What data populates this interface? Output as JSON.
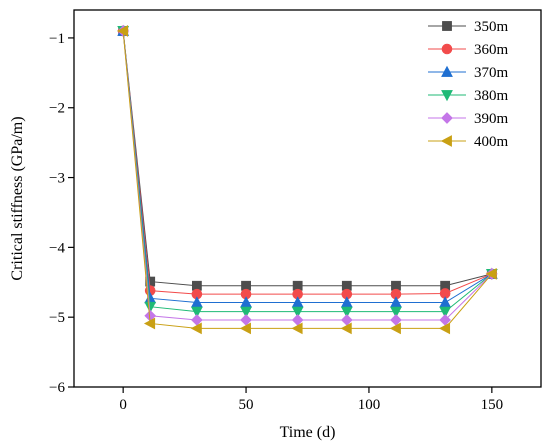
{
  "chart_data": {
    "type": "line",
    "xlabel": "Time (d)",
    "ylabel": "Critical stiffness (GPa/m)",
    "xlim": [
      -20,
      170
    ],
    "ylim": [
      -6,
      -0.6
    ],
    "xticks": [
      0,
      50,
      100,
      150
    ],
    "yticks": [
      -6,
      -5,
      -4,
      -3,
      -2,
      -1
    ],
    "ytick_labels": [
      "−6",
      "−5",
      "−4",
      "−3",
      "−2",
      "−1"
    ],
    "legend_position": "top-right",
    "x": [
      0,
      11,
      30,
      50,
      71,
      91,
      111,
      131,
      150
    ],
    "series": [
      {
        "name": "350m",
        "marker": "square",
        "color": "#4d4d4d",
        "values": [
          -0.9,
          -4.49,
          -4.55,
          -4.55,
          -4.55,
          -4.55,
          -4.55,
          -4.55,
          -4.38
        ]
      },
      {
        "name": "360m",
        "marker": "circle",
        "color": "#f24b4b",
        "values": [
          -0.9,
          -4.62,
          -4.67,
          -4.67,
          -4.67,
          -4.67,
          -4.67,
          -4.66,
          -4.38
        ]
      },
      {
        "name": "370m",
        "marker": "triangle-up",
        "color": "#1f6fd1",
        "values": [
          -0.9,
          -4.73,
          -4.79,
          -4.79,
          -4.79,
          -4.79,
          -4.79,
          -4.79,
          -4.38
        ]
      },
      {
        "name": "380m",
        "marker": "triangle-down",
        "color": "#1fba76",
        "values": [
          -0.9,
          -4.85,
          -4.92,
          -4.92,
          -4.92,
          -4.92,
          -4.92,
          -4.92,
          -4.38
        ]
      },
      {
        "name": "390m",
        "marker": "diamond",
        "color": "#c476e8",
        "values": [
          -0.9,
          -4.98,
          -5.04,
          -5.04,
          -5.04,
          -5.04,
          -5.04,
          -5.04,
          -4.38
        ]
      },
      {
        "name": "400m",
        "marker": "triangle-left",
        "color": "#c9a014",
        "values": [
          -0.9,
          -5.09,
          -5.16,
          -5.16,
          -5.16,
          -5.16,
          -5.16,
          -5.16,
          -4.38
        ]
      }
    ]
  }
}
